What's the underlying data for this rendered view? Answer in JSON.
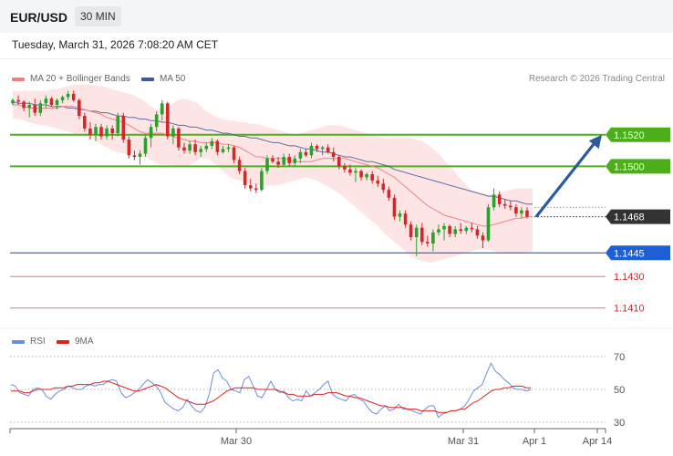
{
  "header": {
    "pair": "EUR/USD",
    "timeframe": "30 MIN"
  },
  "datetime": "Tuesday, March 31, 2026 7:08:20 AM CET",
  "legend": {
    "ma20_bb": "MA 20 + Bollinger Bands",
    "ma50": "MA 50",
    "rsi": "RSI",
    "ma9": "9MA"
  },
  "credit": "Research © 2026 Trading Central",
  "colors": {
    "up": "#2ca02c",
    "down": "#d62728",
    "bb_fill": "#fde1e1",
    "ma20": "#f08080",
    "ma50": "#3c5a9a",
    "resistance": "#4caf1a",
    "support": "#1e5fd8",
    "secondary": "#e87878",
    "current": "#333333",
    "rsi": "#6b8fdb",
    "rsi_ma": "#e02020",
    "arrow": "#2b5aa0"
  },
  "chart_data": [
    {
      "type": "candlestick",
      "ylim": [
        1.14,
        1.1539
      ],
      "x_ticks": [
        "Mar 30",
        "Mar 31",
        "Apr 1",
        "Apr 14"
      ],
      "levels": [
        {
          "value": 1.152,
          "label": "1.1520",
          "role": "resistance"
        },
        {
          "value": 1.15,
          "label": "1.1500",
          "role": "resistance"
        },
        {
          "value": 1.1468,
          "label": "1.1468",
          "role": "current"
        },
        {
          "value": 1.1445,
          "label": "1.1445",
          "role": "support"
        },
        {
          "value": 1.143,
          "label": "1.1430",
          "role": "secondary"
        },
        {
          "value": 1.141,
          "label": "1.1410",
          "role": "secondary"
        }
      ],
      "projection": {
        "from": 1.1468,
        "to": 1.152
      },
      "candles": [
        [
          1.154,
          1.1543,
          1.1539,
          1.1542
        ],
        [
          1.1542,
          1.1545,
          1.1539,
          1.1541
        ],
        [
          1.1541,
          1.1542,
          1.1535,
          1.1537
        ],
        [
          1.1537,
          1.1541,
          1.1531,
          1.1539
        ],
        [
          1.1539,
          1.1543,
          1.1532,
          1.1534
        ],
        [
          1.1534,
          1.1542,
          1.1532,
          1.154
        ],
        [
          1.154,
          1.1545,
          1.1537,
          1.1543
        ],
        [
          1.1543,
          1.1544,
          1.1538,
          1.1539
        ],
        [
          1.1539,
          1.1543,
          1.1536,
          1.1542
        ],
        [
          1.1542,
          1.1545,
          1.154,
          1.1544
        ],
        [
          1.1544,
          1.1548,
          1.1542,
          1.1546
        ],
        [
          1.1546,
          1.1548,
          1.1541,
          1.1542
        ],
        [
          1.1542,
          1.1543,
          1.153,
          1.1532
        ],
        [
          1.1532,
          1.1534,
          1.1522,
          1.1524
        ],
        [
          1.1524,
          1.1528,
          1.1517,
          1.152
        ],
        [
          1.152,
          1.1527,
          1.1516,
          1.1525
        ],
        [
          1.1525,
          1.1527,
          1.1517,
          1.1519
        ],
        [
          1.1519,
          1.1526,
          1.1517,
          1.1524
        ],
        [
          1.1524,
          1.1526,
          1.1517,
          1.1521
        ],
        [
          1.1521,
          1.1534,
          1.1519,
          1.1532
        ],
        [
          1.1532,
          1.1534,
          1.1515,
          1.1517
        ],
        [
          1.1517,
          1.1519,
          1.1505,
          1.1507
        ],
        [
          1.1507,
          1.151,
          1.1504,
          1.1506
        ],
        [
          1.1506,
          1.151,
          1.1501,
          1.1508
        ],
        [
          1.1508,
          1.152,
          1.1506,
          1.1518
        ],
        [
          1.1518,
          1.1527,
          1.1512,
          1.1525
        ],
        [
          1.1525,
          1.1535,
          1.1522,
          1.1533
        ],
        [
          1.1533,
          1.1542,
          1.1529,
          1.154
        ],
        [
          1.154,
          1.1541,
          1.1517,
          1.1519
        ],
        [
          1.1519,
          1.1526,
          1.1514,
          1.1524
        ],
        [
          1.1524,
          1.1525,
          1.151,
          1.1512
        ],
        [
          1.1512,
          1.1515,
          1.1508,
          1.151
        ],
        [
          1.151,
          1.1516,
          1.1508,
          1.1514
        ],
        [
          1.1514,
          1.1517,
          1.1507,
          1.1509
        ],
        [
          1.1509,
          1.1513,
          1.1506,
          1.1511
        ],
        [
          1.1511,
          1.1515,
          1.1509,
          1.1513
        ],
        [
          1.1513,
          1.1518,
          1.1511,
          1.1516
        ],
        [
          1.1516,
          1.1517,
          1.1507,
          1.1509
        ],
        [
          1.1509,
          1.1513,
          1.1508,
          1.1511
        ],
        [
          1.1511,
          1.1514,
          1.1509,
          1.1512
        ],
        [
          1.1512,
          1.1513,
          1.1502,
          1.1504
        ],
        [
          1.1504,
          1.1506,
          1.1495,
          1.1497
        ],
        [
          1.1497,
          1.1499,
          1.1486,
          1.1488
        ],
        [
          1.1488,
          1.1492,
          1.1484,
          1.1486
        ],
        [
          1.1486,
          1.1489,
          1.1483,
          1.1485
        ],
        [
          1.1485,
          1.1499,
          1.1484,
          1.1497
        ],
        [
          1.1497,
          1.1507,
          1.1495,
          1.1505
        ],
        [
          1.1505,
          1.1507,
          1.1502,
          1.1503
        ],
        [
          1.1503,
          1.1506,
          1.1499,
          1.1501
        ],
        [
          1.1501,
          1.1508,
          1.15,
          1.1506
        ],
        [
          1.1506,
          1.1508,
          1.15,
          1.1502
        ],
        [
          1.1502,
          1.1507,
          1.15,
          1.1505
        ],
        [
          1.1505,
          1.1511,
          1.1502,
          1.1509
        ],
        [
          1.1509,
          1.1511,
          1.1506,
          1.1507
        ],
        [
          1.1507,
          1.1515,
          1.1505,
          1.1513
        ],
        [
          1.1513,
          1.1514,
          1.1509,
          1.1511
        ],
        [
          1.1511,
          1.1513,
          1.1507,
          1.1512
        ],
        [
          1.1512,
          1.1514,
          1.1508,
          1.1509
        ],
        [
          1.1509,
          1.1512,
          1.1503,
          1.1506
        ],
        [
          1.1506,
          1.1507,
          1.1498,
          1.15
        ],
        [
          1.15,
          1.1502,
          1.1496,
          1.1498
        ],
        [
          1.1498,
          1.1501,
          1.1494,
          1.1496
        ],
        [
          1.1496,
          1.1499,
          1.149,
          1.1497
        ],
        [
          1.1497,
          1.1498,
          1.1491,
          1.1493
        ],
        [
          1.1493,
          1.1496,
          1.1491,
          1.1495
        ],
        [
          1.1495,
          1.1497,
          1.1489,
          1.1491
        ],
        [
          1.1491,
          1.1494,
          1.1487,
          1.1489
        ],
        [
          1.1489,
          1.1492,
          1.1483,
          1.1485
        ],
        [
          1.1485,
          1.1487,
          1.1478,
          1.148
        ],
        [
          1.148,
          1.1482,
          1.1466,
          1.1468
        ],
        [
          1.1468,
          1.1472,
          1.1465,
          1.147
        ],
        [
          1.147,
          1.1472,
          1.1461,
          1.1463
        ],
        [
          1.1463,
          1.1465,
          1.1453,
          1.1455
        ],
        [
          1.1455,
          1.1463,
          1.1443,
          1.1461
        ],
        [
          1.1461,
          1.1464,
          1.145,
          1.1452
        ],
        [
          1.1452,
          1.1456,
          1.1449,
          1.1451
        ],
        [
          1.1451,
          1.146,
          1.1446,
          1.1458
        ],
        [
          1.1458,
          1.1463,
          1.1456,
          1.146
        ],
        [
          1.146,
          1.1464,
          1.1453,
          1.1462
        ],
        [
          1.1462,
          1.1463,
          1.1455,
          1.1457
        ],
        [
          1.1457,
          1.1462,
          1.1455,
          1.146
        ],
        [
          1.146,
          1.1464,
          1.1457,
          1.1459
        ],
        [
          1.1459,
          1.1462,
          1.1457,
          1.1461
        ],
        [
          1.1461,
          1.1464,
          1.1458,
          1.146
        ],
        [
          1.146,
          1.1462,
          1.1454,
          1.1456
        ],
        [
          1.1456,
          1.1458,
          1.1448,
          1.1453
        ],
        [
          1.1453,
          1.1476,
          1.1452,
          1.1474
        ],
        [
          1.1474,
          1.1486,
          1.1472,
          1.1482
        ],
        [
          1.1482,
          1.1484,
          1.1474,
          1.1476
        ],
        [
          1.1476,
          1.1479,
          1.1473,
          1.1475
        ],
        [
          1.1475,
          1.1478,
          1.1472,
          1.1474
        ],
        [
          1.1474,
          1.1476,
          1.1468,
          1.147
        ],
        [
          1.147,
          1.1474,
          1.1467,
          1.1472
        ],
        [
          1.1472,
          1.1474,
          1.1467,
          1.1468
        ]
      ],
      "ma20": [
        1.1539,
        1.1539,
        1.1538,
        1.1537,
        1.1537,
        1.1537,
        1.1537,
        1.1537,
        1.1537,
        1.1538,
        1.1538,
        1.1538,
        1.1537,
        1.1536,
        1.1535,
        1.1534,
        1.1533,
        1.1531,
        1.153,
        1.1529,
        1.1528,
        1.1526,
        1.1524,
        1.1522,
        1.1521,
        1.1521,
        1.1521,
        1.1521,
        1.152,
        1.1519,
        1.1518,
        1.1517,
        1.1516,
        1.1516,
        1.1515,
        1.1515,
        1.1515,
        1.1515,
        1.1514,
        1.1514,
        1.1513,
        1.1512,
        1.151,
        1.1508,
        1.1506,
        1.1506,
        1.1505,
        1.1505,
        1.1505,
        1.1505,
        1.1504,
        1.1503,
        1.1503,
        1.1503,
        1.1503,
        1.1504,
        1.1505,
        1.1505,
        1.1505,
        1.1505,
        1.1505,
        1.1504,
        1.1503,
        1.1502,
        1.1501,
        1.15,
        1.1499,
        1.1497,
        1.1495,
        1.1493,
        1.149,
        1.1487,
        1.1484,
        1.1481,
        1.1478,
        1.1475,
        1.1473,
        1.1471,
        1.1469,
        1.1468,
        1.1467,
        1.1466,
        1.1465,
        1.1464,
        1.1463,
        1.1462,
        1.1462,
        1.1463,
        1.1464,
        1.1465,
        1.1466,
        1.1467,
        1.1467,
        1.1468,
        1.1468
      ],
      "ma50": [
        1.1541,
        1.154,
        1.154,
        1.154,
        1.1539,
        1.1539,
        1.1539,
        1.1538,
        1.1538,
        1.1538,
        1.1537,
        1.1537,
        1.1536,
        1.1536,
        1.1535,
        1.1535,
        1.1534,
        1.1534,
        1.1533,
        1.1532,
        1.1532,
        1.1531,
        1.1531,
        1.153,
        1.153,
        1.1529,
        1.1529,
        1.1528,
        1.1528,
        1.1527,
        1.1526,
        1.1526,
        1.1525,
        1.1525,
        1.1524,
        1.1523,
        1.1523,
        1.1522,
        1.1521,
        1.1521,
        1.152,
        1.1519,
        1.1519,
        1.1518,
        1.1518,
        1.1517,
        1.1516,
        1.1515,
        1.1515,
        1.1514,
        1.1513,
        1.1513,
        1.1512,
        1.1511,
        1.1511,
        1.151,
        1.1509,
        1.1509,
        1.1508,
        1.1507,
        1.1506,
        1.1506,
        1.1505,
        1.1504,
        1.1503,
        1.1503,
        1.1502,
        1.1501,
        1.15,
        1.1498,
        1.1497,
        1.1496,
        1.1495,
        1.1494,
        1.1493,
        1.1492,
        1.1491,
        1.149,
        1.1489,
        1.1488,
        1.1487,
        1.1486,
        1.1485,
        1.1484,
        1.1483,
        1.1482,
        1.1481,
        1.1481,
        1.148,
        1.1479,
        1.1478,
        1.1478,
        1.1477,
        1.1476,
        1.1476
      ],
      "bb_upper": [
        1.1548,
        1.1548,
        1.1548,
        1.1548,
        1.1548,
        1.1548,
        1.1548,
        1.1549,
        1.1549,
        1.155,
        1.1551,
        1.1552,
        1.1552,
        1.1552,
        1.1552,
        1.1551,
        1.1551,
        1.155,
        1.1549,
        1.1548,
        1.1547,
        1.1546,
        1.1545,
        1.1543,
        1.1541,
        1.1538,
        1.1536,
        1.1537,
        1.1538,
        1.154,
        1.1542,
        1.1543,
        1.1542,
        1.1541,
        1.1538,
        1.1535,
        1.1533,
        1.1531,
        1.153,
        1.1529,
        1.1529,
        1.1528,
        1.1528,
        1.1527,
        1.1527,
        1.1526,
        1.1525,
        1.1524,
        1.1523,
        1.1522,
        1.1521,
        1.152,
        1.1521,
        1.1522,
        1.1523,
        1.1524,
        1.1525,
        1.1526,
        1.1526,
        1.1526,
        1.1525,
        1.1524,
        1.1523,
        1.1522,
        1.1521,
        1.152,
        1.1519,
        1.1518,
        1.1518,
        1.1518,
        1.1518,
        1.1518,
        1.1518,
        1.1517,
        1.1516,
        1.1514,
        1.1511,
        1.1508,
        1.1504,
        1.15,
        1.1496,
        1.1492,
        1.1488,
        1.1485,
        1.1484,
        1.1483,
        1.1482,
        1.1482,
        1.1483,
        1.1484,
        1.1485,
        1.1486,
        1.1486,
        1.1486,
        1.1486
      ],
      "bb_lower": [
        1.153,
        1.153,
        1.1529,
        1.1528,
        1.1527,
        1.1526,
        1.1526,
        1.1525,
        1.1524,
        1.1523,
        1.1522,
        1.1521,
        1.152,
        1.1519,
        1.1518,
        1.1516,
        1.1514,
        1.1512,
        1.151,
        1.1509,
        1.1508,
        1.1508,
        1.1508,
        1.1507,
        1.1506,
        1.1504,
        1.1502,
        1.1501,
        1.1501,
        1.1501,
        1.15,
        1.15,
        1.1501,
        1.1503,
        1.1505,
        1.1505,
        1.1503,
        1.15,
        1.1497,
        1.1494,
        1.1492,
        1.1491,
        1.149,
        1.1489,
        1.1488,
        1.1488,
        1.1488,
        1.1488,
        1.1488,
        1.1489,
        1.149,
        1.1491,
        1.1492,
        1.1493,
        1.1492,
        1.1491,
        1.1489,
        1.1487,
        1.1485,
        1.1483,
        1.148,
        1.1477,
        1.1474,
        1.1471,
        1.1468,
        1.1465,
        1.1462,
        1.1458,
        1.1455,
        1.1452,
        1.1449,
        1.1446,
        1.1443,
        1.1441,
        1.144,
        1.1439,
        1.1439,
        1.144,
        1.1441,
        1.1442,
        1.1443,
        1.1444,
        1.1445,
        1.1446,
        1.1447,
        1.1447,
        1.1447,
        1.1446,
        1.1445,
        1.1445,
        1.1445,
        1.1445,
        1.1445,
        1.1445,
        1.1446
      ]
    },
    {
      "type": "line",
      "ylim": [
        20,
        80
      ],
      "y_ticks": [
        70,
        50,
        30
      ],
      "rsi": [
        53,
        52,
        48,
        47,
        46,
        50,
        51,
        50,
        46,
        44,
        47,
        49,
        50,
        52,
        51,
        50,
        50,
        52,
        53,
        52,
        53,
        53,
        55,
        56,
        55,
        48,
        45,
        46,
        48,
        50,
        53,
        56,
        54,
        52,
        48,
        42,
        40,
        38,
        37,
        39,
        44,
        40,
        37,
        36,
        39,
        47,
        60,
        62,
        57,
        55,
        50,
        49,
        48,
        56,
        58,
        52,
        46,
        45,
        50,
        55,
        50,
        48,
        49,
        45,
        43,
        44,
        43,
        49,
        46,
        48,
        50,
        53,
        55,
        47,
        45,
        44,
        43,
        46,
        47,
        44,
        43,
        39,
        36,
        35,
        38,
        40,
        37,
        38,
        41,
        38,
        38,
        37,
        36,
        35,
        38,
        40,
        40,
        33,
        35,
        36,
        37,
        37,
        38,
        40,
        44,
        49,
        51,
        53,
        60,
        66,
        61,
        59,
        56,
        54,
        51,
        50,
        50,
        49,
        50
      ],
      "rsi_ma": [
        49,
        49,
        49,
        48,
        48,
        49,
        50,
        50,
        50,
        50,
        51,
        51,
        51,
        52,
        52,
        53,
        53,
        53,
        53,
        54,
        54,
        55,
        55,
        54,
        53,
        52,
        51,
        50,
        49,
        49,
        50,
        51,
        52,
        53,
        52,
        51,
        49,
        47,
        45,
        44,
        43,
        42,
        41,
        41,
        41,
        42,
        43,
        45,
        47,
        49,
        50,
        51,
        51,
        51,
        51,
        51,
        50,
        50,
        50,
        50,
        50,
        49,
        48,
        47,
        47,
        46,
        46,
        46,
        46,
        47,
        47,
        47,
        48,
        48,
        48,
        47,
        46,
        46,
        45,
        45,
        44,
        43,
        42,
        41,
        40,
        40,
        39,
        39,
        39,
        39,
        38,
        38,
        38,
        37,
        37,
        37,
        37,
        36,
        36,
        36,
        37,
        37,
        38,
        38,
        40,
        42,
        43,
        45,
        47,
        49,
        50,
        50,
        51,
        51,
        52,
        52,
        52,
        51,
        51
      ]
    }
  ]
}
